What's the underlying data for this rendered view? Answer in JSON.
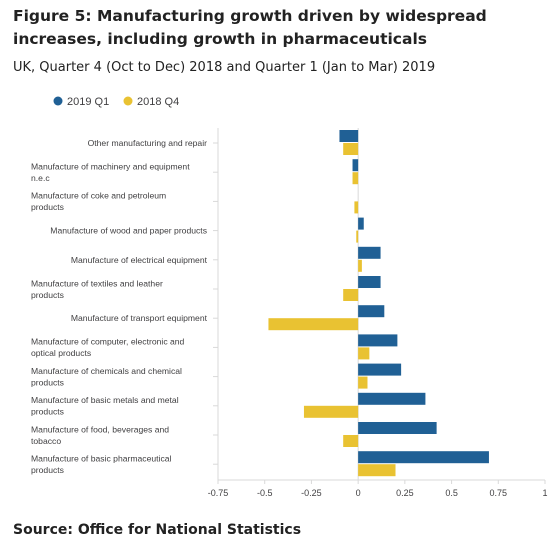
{
  "title": "Figure 5: Manufacturing growth driven by widespread increases, including growth in pharmaceuticals",
  "subtitle": "UK, Quarter 4 (Oct to Dec) 2018 and Quarter 1 (Jan to Mar) 2019",
  "source": "Source: Office for National Statistics",
  "colors": {
    "q1": "#206095",
    "q4": "#e9c232",
    "axis": "#d9d9d9",
    "text": "#414042"
  },
  "chart_data": {
    "type": "bar",
    "orientation": "horizontal",
    "categories": [
      [
        "Other manufacturing and repair"
      ],
      [
        "Manufacture of machinery and equipment",
        "n.e.c"
      ],
      [
        "Manufacture of coke and petroleum",
        "products"
      ],
      [
        "Manufacture of wood and paper products"
      ],
      [
        "Manufacture of electrical equipment"
      ],
      [
        "Manufacture of textiles and leather",
        "products"
      ],
      [
        "Manufacture of transport equipment"
      ],
      [
        "Manufacture of computer, electronic and",
        "optical products"
      ],
      [
        "Manufacture of chemicals and chemical",
        "products"
      ],
      [
        "Manufacture of basic metals and metal",
        "products"
      ],
      [
        "Manufacture of food, beverages and",
        "tobacco"
      ],
      [
        "Manufacture of basic pharmaceutical",
        "products"
      ]
    ],
    "series": [
      {
        "name": "2019 Q1",
        "values": [
          -0.1,
          -0.03,
          0.0,
          0.03,
          0.12,
          0.12,
          0.14,
          0.21,
          0.23,
          0.36,
          0.42,
          0.7
        ]
      },
      {
        "name": "2018 Q4",
        "values": [
          -0.08,
          -0.03,
          -0.02,
          -0.01,
          0.02,
          -0.08,
          -0.48,
          0.06,
          0.05,
          -0.29,
          -0.08,
          0.2
        ]
      }
    ],
    "xlim": [
      -0.75,
      1
    ],
    "xticks": [
      "-0.75",
      "-0.5",
      "-0.25",
      "0",
      "0.25",
      "0.5",
      "0.75",
      "1"
    ],
    "xlabel": "",
    "ylabel": "",
    "legend_position": "top-left",
    "grid": false
  }
}
